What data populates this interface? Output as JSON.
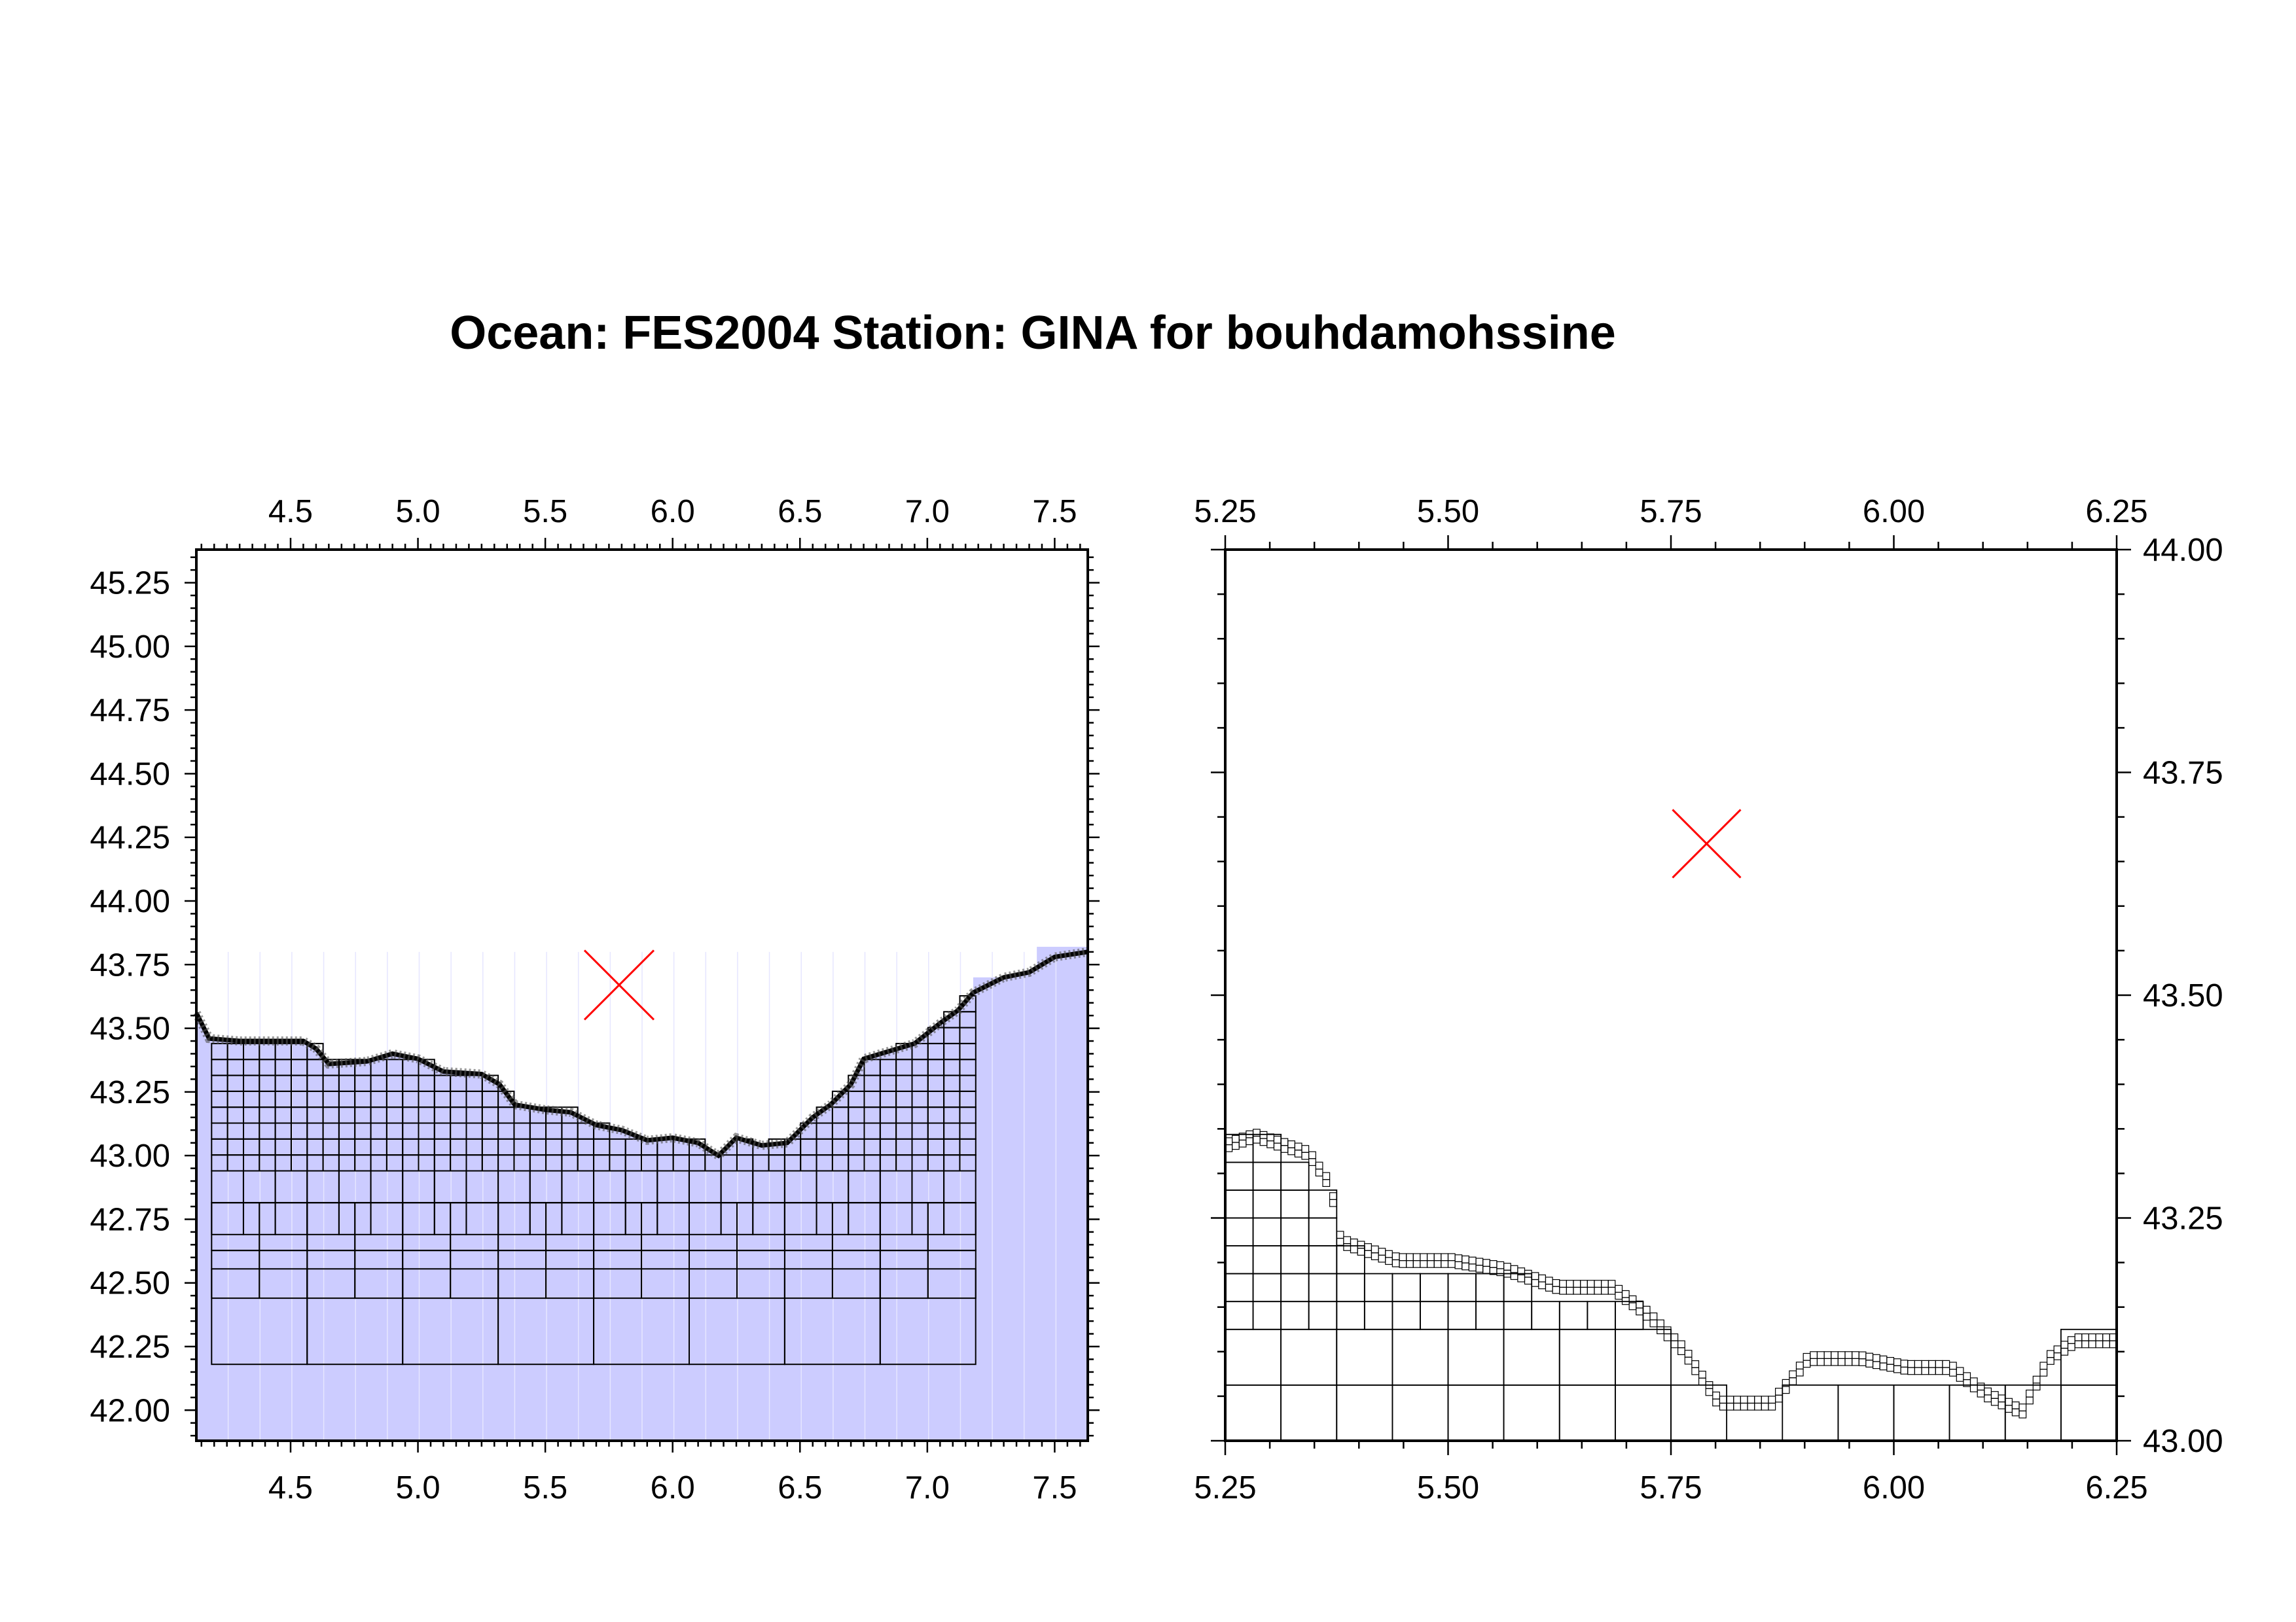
{
  "title": "Ocean: FES2004  Station: GINA  for bouhdamohssine",
  "colors": {
    "land_fill": "#ccccff",
    "grid_line": "#000000",
    "frame": "#000000",
    "station_marker": "#ff0000"
  },
  "station": {
    "name": "GINA",
    "lon": 5.79,
    "lat": 43.67,
    "marker": "x"
  },
  "maps": [
    {
      "id": "overview",
      "lon_range": [
        4.13,
        7.63
      ],
      "lat_range": [
        41.88,
        45.38
      ],
      "x_ticks": [
        "4.5",
        "5.0",
        "5.5",
        "6.0",
        "6.5",
        "7.0",
        "7.5"
      ],
      "y_ticks": [
        "42.00",
        "42.25",
        "42.50",
        "42.75",
        "43.00",
        "43.25",
        "43.50",
        "43.75",
        "44.00",
        "44.25",
        "44.50",
        "44.75",
        "45.00",
        "45.25"
      ],
      "y_label_side": "left"
    },
    {
      "id": "zoom",
      "lon_range": [
        5.25,
        6.25
      ],
      "lat_range": [
        43.0,
        44.0
      ],
      "x_ticks": [
        "5.25",
        "5.50",
        "5.75",
        "6.00",
        "6.25"
      ],
      "y_ticks": [
        "43.00",
        "43.25",
        "43.50",
        "43.75",
        "44.00"
      ],
      "y_label_side": "right"
    }
  ]
}
